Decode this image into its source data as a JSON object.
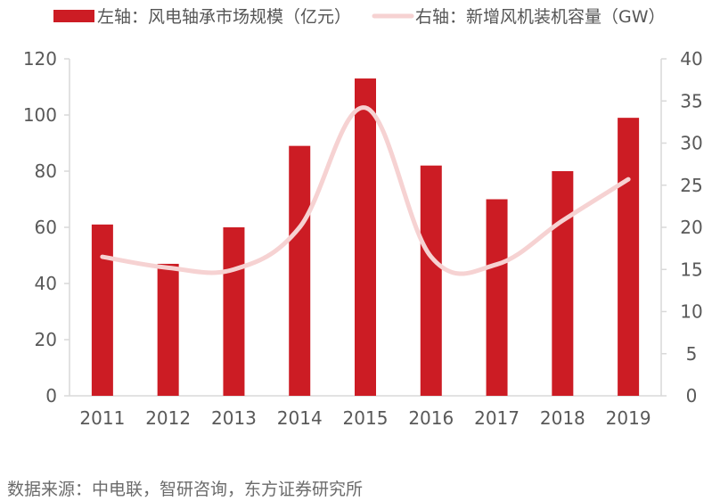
{
  "chart_data": {
    "type": "bar",
    "categories": [
      "2011",
      "2012",
      "2013",
      "2014",
      "2015",
      "2016",
      "2017",
      "2018",
      "2019"
    ],
    "series": [
      {
        "name": "左轴：风电轴承市场规模（亿元）",
        "type": "bar",
        "axis": "left",
        "color": "#cc1c24",
        "values": [
          61,
          47,
          60,
          89,
          113,
          82,
          70,
          80,
          99
        ]
      },
      {
        "name": "右轴：新增风机装机容量（GW）",
        "type": "line",
        "axis": "right",
        "color": "#f6d2d2",
        "values": [
          16.5,
          15.2,
          15.0,
          20.0,
          34.2,
          16.5,
          15.6,
          20.8,
          25.7
        ]
      }
    ],
    "y_left": {
      "min": 0,
      "max": 120,
      "ticks": [
        "0",
        "20",
        "40",
        "60",
        "80",
        "100",
        "120"
      ]
    },
    "y_right": {
      "min": 0,
      "max": 40,
      "ticks": [
        "0",
        "5",
        "10",
        "15",
        "20",
        "25",
        "30",
        "35",
        "40"
      ]
    },
    "legend_position": "top",
    "grid": false
  },
  "source": "数据来源：中电联，智研咨询，东方证券研究所"
}
